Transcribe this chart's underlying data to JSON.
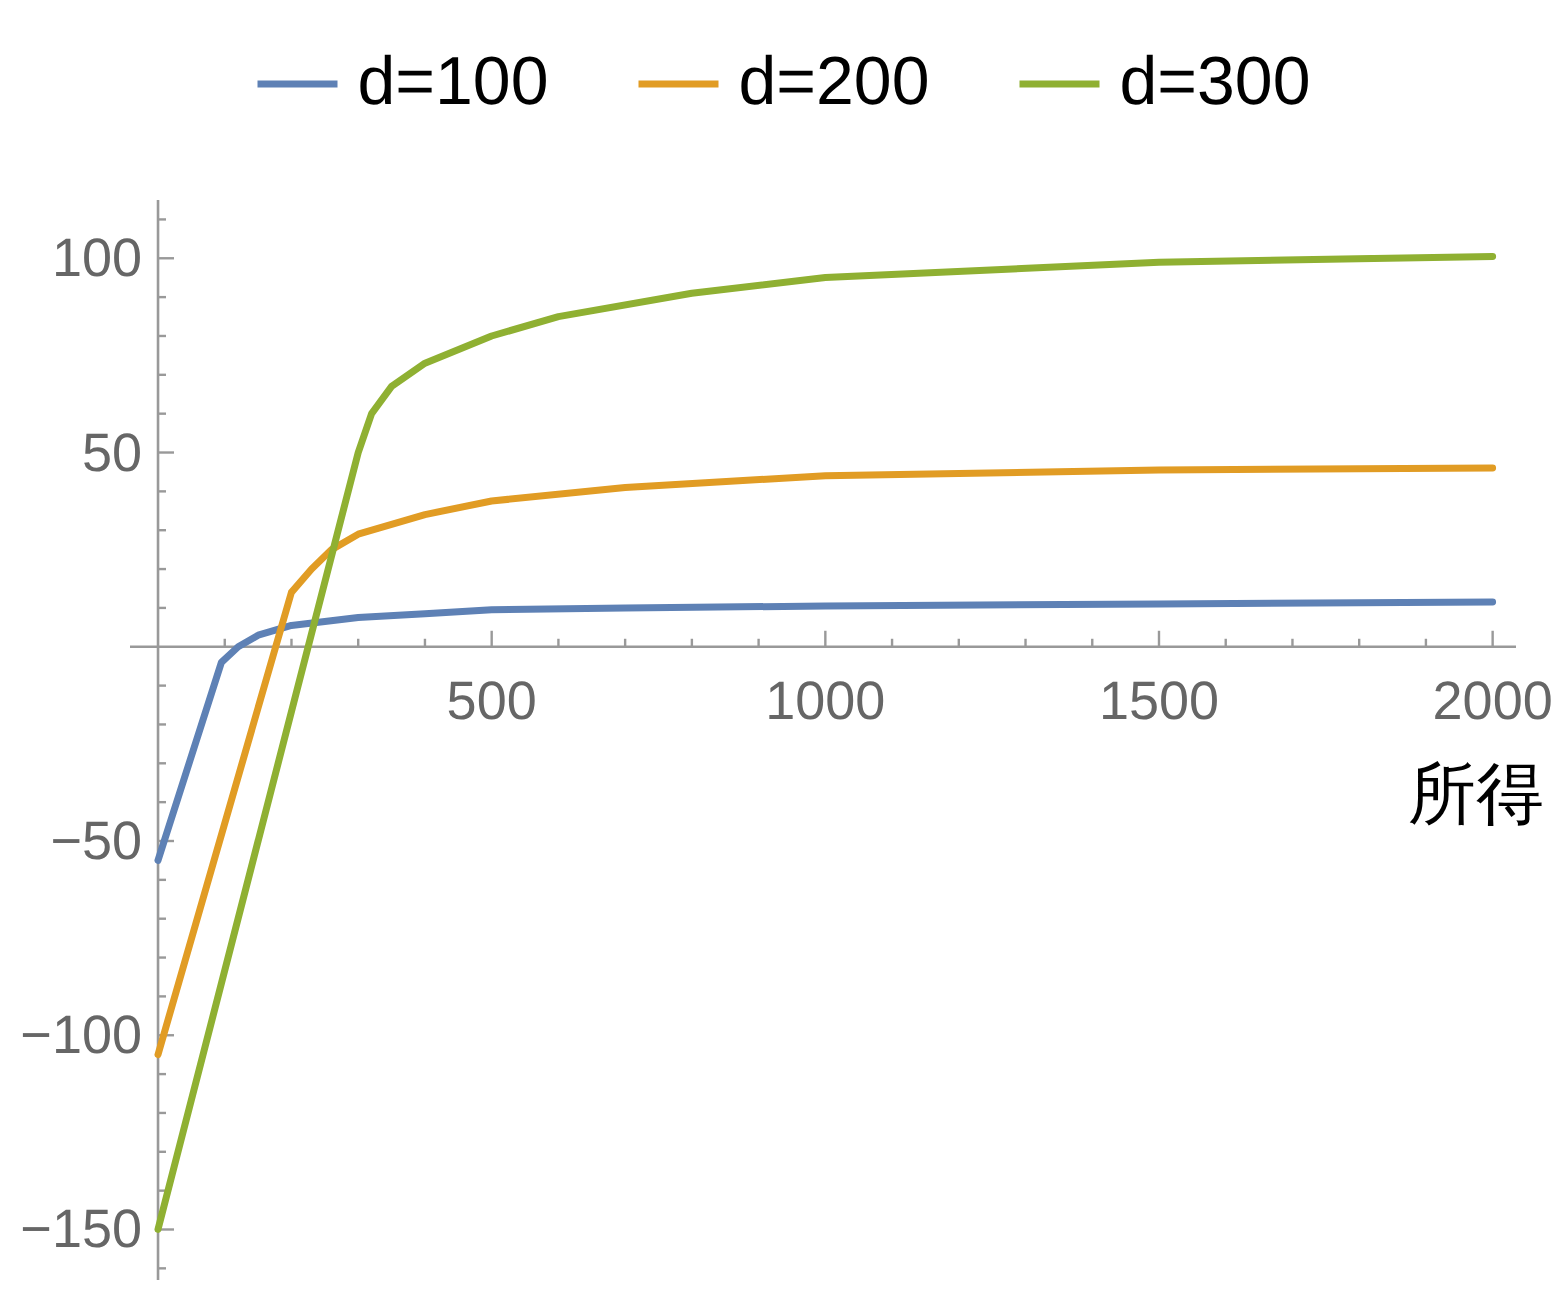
{
  "chart_data": {
    "type": "line",
    "xlabel": "所得",
    "legend": "top",
    "xlim": [
      -42,
      2035
    ],
    "ylim": [
      -163,
      115
    ],
    "xticks": [
      {
        "value": 100,
        "label": null
      },
      {
        "value": 200,
        "label": null
      },
      {
        "value": 300,
        "label": null
      },
      {
        "value": 400,
        "label": null
      },
      500,
      {
        "value": 600,
        "label": null
      },
      {
        "value": 700,
        "label": null
      },
      {
        "value": 800,
        "label": null
      },
      {
        "value": 900,
        "label": null
      },
      1000,
      {
        "value": 1100,
        "label": null
      },
      {
        "value": 1200,
        "label": null
      },
      {
        "value": 1300,
        "label": null
      },
      {
        "value": 1400,
        "label": null
      },
      1500,
      {
        "value": 1600,
        "label": null
      },
      {
        "value": 1700,
        "label": null
      },
      {
        "value": 1800,
        "label": null
      },
      {
        "value": 1900,
        "label": null
      },
      2000
    ],
    "yticks": [
      {
        "value": -160,
        "label": null
      },
      -150,
      {
        "value": -140,
        "label": null
      },
      {
        "value": -130,
        "label": null
      },
      {
        "value": -120,
        "label": null
      },
      {
        "value": -110,
        "label": null
      },
      -100,
      {
        "value": -90,
        "label": null
      },
      {
        "value": -80,
        "label": null
      },
      {
        "value": -70,
        "label": null
      },
      {
        "value": -60,
        "label": null
      },
      -50,
      {
        "value": -40,
        "label": null
      },
      {
        "value": -30,
        "label": null
      },
      {
        "value": -20,
        "label": null
      },
      {
        "value": -10,
        "label": null
      },
      {
        "value": 10,
        "label": null
      },
      {
        "value": 20,
        "label": null
      },
      {
        "value": 30,
        "label": null
      },
      {
        "value": 40,
        "label": null
      },
      50,
      {
        "value": 60,
        "label": null
      },
      {
        "value": 70,
        "label": null
      },
      {
        "value": 80,
        "label": null
      },
      {
        "value": 90,
        "label": null
      },
      100,
      {
        "value": 110,
        "label": null
      }
    ],
    "series": [
      {
        "name": "d=100",
        "color": "#5e81b5",
        "x": [
          0,
          95,
          120,
          150,
          200,
          300,
          400,
          500,
          700,
          1000,
          1500,
          2000
        ],
        "values": [
          -55,
          -4,
          0,
          3,
          5.5,
          7.5,
          8.5,
          9.5,
          10,
          10.5,
          11,
          11.5
        ]
      },
      {
        "name": "d=200",
        "color": "#e19c24",
        "x": [
          0,
          200,
          230,
          260,
          300,
          400,
          500,
          700,
          1000,
          1500,
          2000
        ],
        "values": [
          -105,
          14,
          20,
          25,
          29,
          34,
          37.5,
          41,
          44,
          45.5,
          46
        ]
      },
      {
        "name": "d=300",
        "color": "#8fb032",
        "x": [
          0,
          300,
          320,
          350,
          400,
          500,
          600,
          800,
          1000,
          1500,
          2000
        ],
        "values": [
          -150,
          50,
          60,
          67,
          73,
          80,
          85,
          91,
          95,
          99,
          100.5
        ]
      }
    ]
  }
}
